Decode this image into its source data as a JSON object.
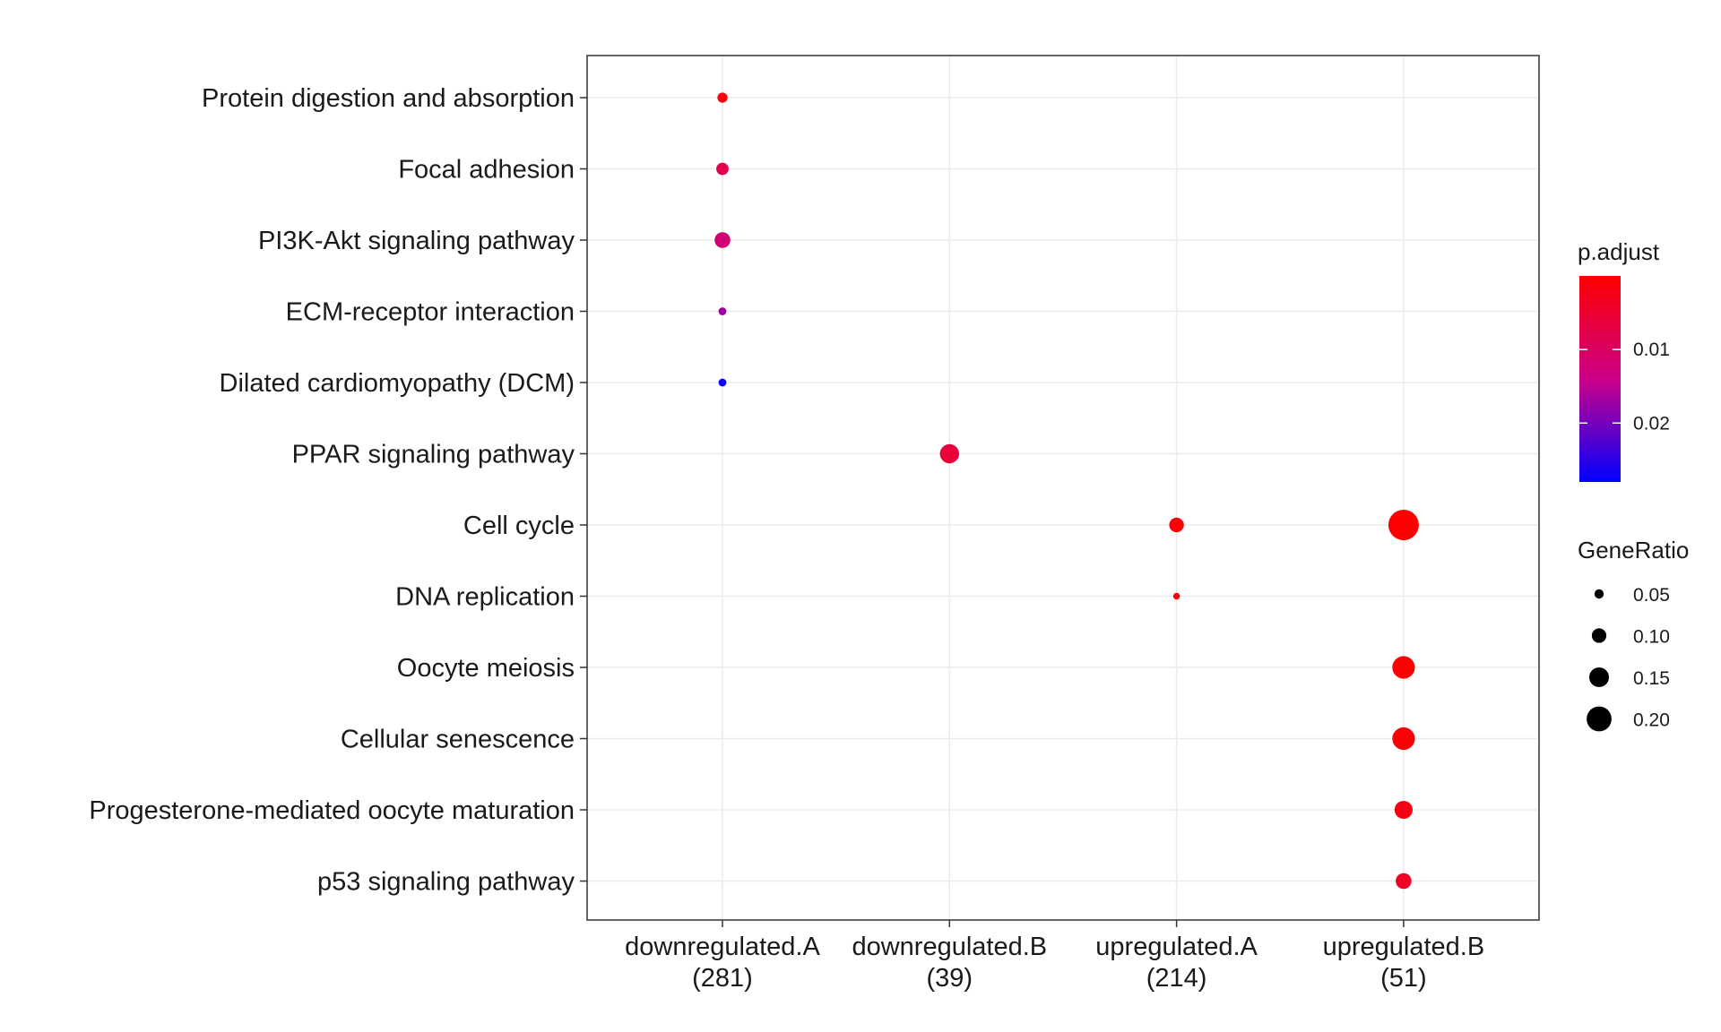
{
  "chart_data": {
    "type": "scatter",
    "title": "",
    "xlabel": "",
    "ylabel": "",
    "x_categories": [
      {
        "name": "downregulated.A",
        "count": "(281)"
      },
      {
        "name": "downregulated.B",
        "count": "(39)"
      },
      {
        "name": "upregulated.A",
        "count": "(214)"
      },
      {
        "name": "upregulated.B",
        "count": "(51)"
      }
    ],
    "y_categories": [
      "Protein digestion and absorption",
      "Focal adhesion",
      "PI3K-Akt signaling pathway",
      "ECM-receptor interaction",
      "Dilated cardiomyopathy (DCM)",
      "PPAR signaling pathway",
      "Cell cycle",
      "DNA replication",
      "Oocyte meiosis",
      "Cellular senescence",
      "Progesterone-mediated oocyte maturation",
      "p53 signaling pathway"
    ],
    "points": [
      {
        "x": "downregulated.A",
        "y": "Protein digestion and absorption",
        "gene_ratio": 0.05,
        "p_adjust": 0.001
      },
      {
        "x": "downregulated.A",
        "y": "Focal adhesion",
        "gene_ratio": 0.07,
        "p_adjust": 0.008
      },
      {
        "x": "downregulated.A",
        "y": "PI3K-Akt signaling pathway",
        "gene_ratio": 0.1,
        "p_adjust": 0.012
      },
      {
        "x": "downregulated.A",
        "y": "ECM-receptor interaction",
        "gene_ratio": 0.03,
        "p_adjust": 0.017
      },
      {
        "x": "downregulated.A",
        "y": "Dilated cardiomyopathy (DCM)",
        "gene_ratio": 0.03,
        "p_adjust": 0.027
      },
      {
        "x": "downregulated.B",
        "y": "PPAR signaling pathway",
        "gene_ratio": 0.13,
        "p_adjust": 0.006
      },
      {
        "x": "upregulated.A",
        "y": "Cell cycle",
        "gene_ratio": 0.09,
        "p_adjust": 0.0005
      },
      {
        "x": "upregulated.A",
        "y": "DNA replication",
        "gene_ratio": 0.02,
        "p_adjust": 0.0008
      },
      {
        "x": "upregulated.B",
        "y": "Cell cycle",
        "gene_ratio": 0.23,
        "p_adjust": 0.0001
      },
      {
        "x": "upregulated.B",
        "y": "Oocyte meiosis",
        "gene_ratio": 0.16,
        "p_adjust": 0.0002
      },
      {
        "x": "upregulated.B",
        "y": "Cellular senescence",
        "gene_ratio": 0.16,
        "p_adjust": 0.0005
      },
      {
        "x": "upregulated.B",
        "y": "Progesterone-mediated oocyte maturation",
        "gene_ratio": 0.12,
        "p_adjust": 0.002
      },
      {
        "x": "upregulated.B",
        "y": "p53 signaling pathway",
        "gene_ratio": 0.1,
        "p_adjust": 0.004
      }
    ],
    "color_legend": {
      "title": "p.adjust",
      "range": [
        0,
        0.028
      ],
      "ticks": [
        0.01,
        0.02
      ],
      "tick_labels": [
        "0.01",
        "0.02"
      ],
      "low_color": "#ff0000",
      "mid_color": "#cc0088",
      "high_color": "#0000ff"
    },
    "size_legend": {
      "title": "GeneRatio",
      "values": [
        0.05,
        0.1,
        0.15,
        0.2
      ],
      "labels": [
        "0.05",
        "0.10",
        "0.15",
        "0.20"
      ]
    },
    "grid": true,
    "legend_position": "right"
  }
}
